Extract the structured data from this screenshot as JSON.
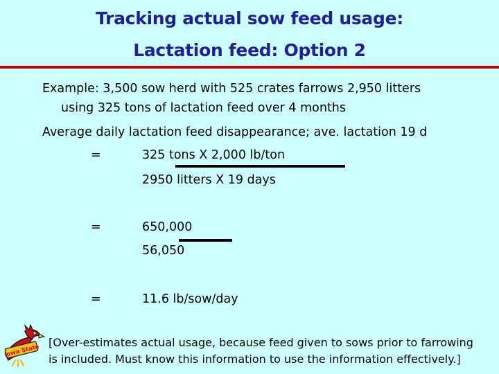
{
  "slide": {
    "title_line1": "Tracking actual sow feed usage:",
    "title_line2": "Lactation feed: Option 2",
    "example_line1": "Example: 3,500 sow herd with 525 crates farrows 2,950 litters",
    "example_line2": "using 325 tons of lactation feed over 4 months",
    "average_line": "Average daily lactation feed disappearance; ave. lactation 19 d",
    "equation1": {
      "equals": "=",
      "numerator": "325 tons X 2,000 lb/ton",
      "denominator": "2950 litters X 19 days"
    },
    "equation2": {
      "equals": "=",
      "numerator": "650,000",
      "denominator": "56,050"
    },
    "equation3": {
      "equals": "=",
      "result": "11.6 lb/sow/day"
    },
    "note_line1": "[Over-estimates actual usage, because feed given to sows prior to farrowing",
    "note_line2": "is included.  Must know this information to use the information effectively.]"
  },
  "colors": {
    "background": "#ccffff",
    "title": "#1f1f99",
    "rule": "#cc0000"
  },
  "logo": {
    "icon": "iowa-state-cyclone-mascot-icon",
    "text": "Iowa State"
  }
}
